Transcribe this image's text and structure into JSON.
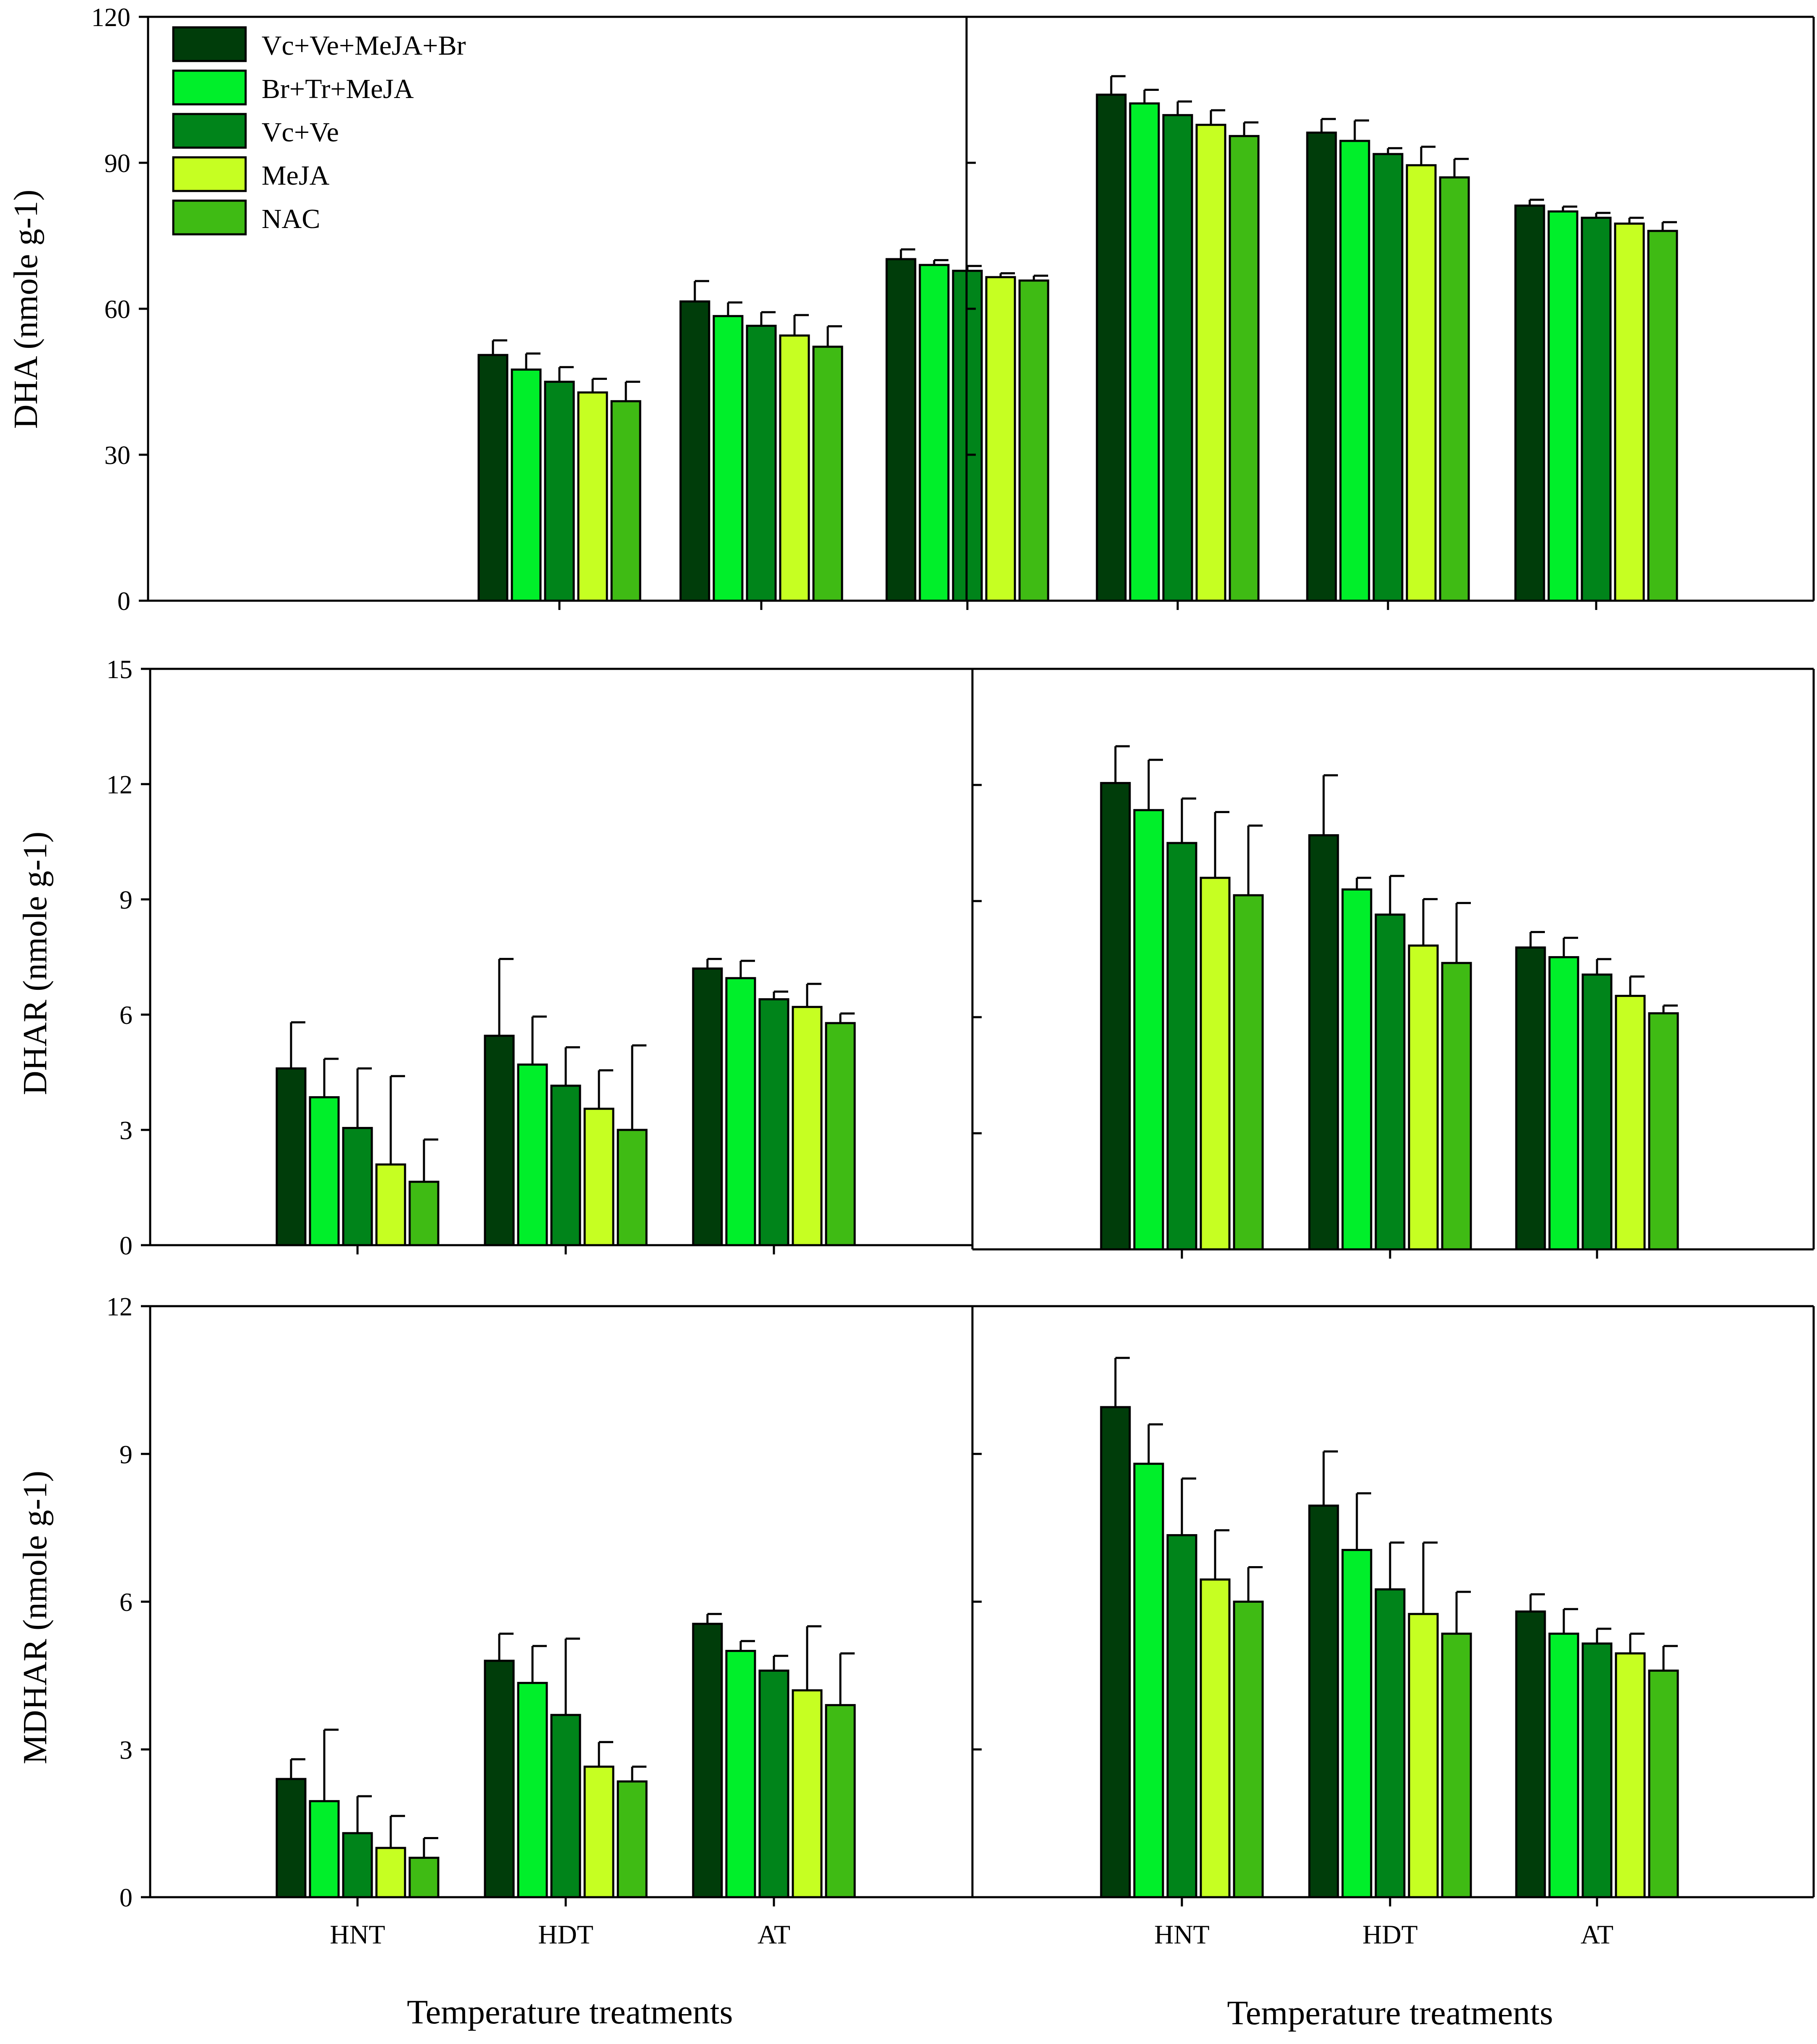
{
  "legend": {
    "entries": [
      "Vc+Ve+MeJA+Br",
      "Br+Tr+MeJA",
      "Vc+Ve",
      "MeJA",
      "NAC"
    ]
  },
  "colors": [
    "#003d0a",
    "#00ef2a",
    "#00841a",
    "#c6ff22",
    "#3fbb14"
  ],
  "chart_data": [
    {
      "type": "bar",
      "id": "dha-left",
      "ylabel": "DHA (nmole g-1)",
      "xlabel": "",
      "categories": [
        "HNT",
        "HDT",
        "AT"
      ],
      "show_category_labels": false,
      "ylim": [
        0,
        120
      ],
      "yticks": [
        0,
        30,
        60,
        90,
        120
      ],
      "show_ytick_labels": true,
      "series": [
        {
          "name": "Vc+Ve+MeJA+Br",
          "values": [
            50.5,
            61.5,
            70.2
          ],
          "errors": [
            3.0,
            4.2,
            2.0
          ]
        },
        {
          "name": "Br+Tr+MeJA",
          "values": [
            47.5,
            58.5,
            69.0
          ],
          "errors": [
            3.3,
            2.8,
            1.0
          ]
        },
        {
          "name": "Vc+Ve",
          "values": [
            45.0,
            56.5,
            67.8
          ],
          "errors": [
            3.0,
            2.8,
            1.0
          ]
        },
        {
          "name": "MeJA",
          "values": [
            42.8,
            54.5,
            66.5
          ],
          "errors": [
            2.8,
            4.2,
            0.8
          ]
        },
        {
          "name": "NAC",
          "values": [
            41.0,
            52.2,
            65.8
          ],
          "errors": [
            4.0,
            4.2,
            1.0
          ]
        }
      ]
    },
    {
      "type": "bar",
      "id": "dha-right",
      "ylabel": "",
      "xlabel": "",
      "categories": [
        "HNT",
        "HDT",
        "AT"
      ],
      "show_category_labels": false,
      "ylim": [
        0,
        120
      ],
      "yticks": [
        0,
        30,
        60,
        90,
        120
      ],
      "show_ytick_labels": false,
      "series": [
        {
          "name": "Vc+Ve+MeJA+Br",
          "values": [
            104.0,
            96.2,
            81.2
          ],
          "errors": [
            3.8,
            2.8,
            1.2
          ]
        },
        {
          "name": "Br+Tr+MeJA",
          "values": [
            102.2,
            94.5,
            80.0
          ],
          "errors": [
            2.8,
            4.2,
            1.0
          ]
        },
        {
          "name": "Vc+Ve",
          "values": [
            99.8,
            91.8,
            78.7
          ],
          "errors": [
            2.8,
            1.2,
            1.0
          ]
        },
        {
          "name": "MeJA",
          "values": [
            97.8,
            89.5,
            77.5
          ],
          "errors": [
            3.0,
            3.8,
            1.2
          ]
        },
        {
          "name": "NAC",
          "values": [
            95.5,
            87.0,
            76.0
          ],
          "errors": [
            2.8,
            3.8,
            1.8
          ]
        }
      ]
    },
    {
      "type": "bar",
      "id": "dhar-left",
      "ylabel": "DHAR (nmole g-1)",
      "xlabel": "",
      "categories": [
        "HNT",
        "HDT",
        "AT"
      ],
      "show_category_labels": false,
      "ylim": [
        0,
        15
      ],
      "yticks": [
        0,
        3,
        6,
        9,
        12,
        15
      ],
      "show_ytick_labels": true,
      "series": [
        {
          "name": "Vc+Ve+MeJA+Br",
          "values": [
            4.6,
            5.45,
            7.2
          ],
          "errors": [
            1.2,
            2.0,
            0.25
          ]
        },
        {
          "name": "Br+Tr+MeJA",
          "values": [
            3.85,
            4.7,
            6.95
          ],
          "errors": [
            1.0,
            1.25,
            0.45
          ]
        },
        {
          "name": "Vc+Ve",
          "values": [
            3.05,
            4.15,
            6.4
          ],
          "errors": [
            1.55,
            1.0,
            0.2
          ]
        },
        {
          "name": "MeJA",
          "values": [
            2.1,
            3.55,
            6.2
          ],
          "errors": [
            2.3,
            1.0,
            0.6
          ]
        },
        {
          "name": "NAC",
          "values": [
            1.65,
            3.0,
            5.78
          ],
          "errors": [
            1.1,
            2.2,
            0.25
          ]
        }
      ]
    },
    {
      "type": "bar",
      "id": "dhar-right",
      "ylabel": "",
      "xlabel": "",
      "categories": [
        "HNT",
        "HDT",
        "AT"
      ],
      "show_category_labels": false,
      "ylim": [
        0,
        15
      ],
      "yticks": [
        0,
        3,
        6,
        9,
        12,
        15
      ],
      "show_ytick_labels": false,
      "series": [
        {
          "name": "Vc+Ve+MeJA+Br",
          "values": [
            12.05,
            10.7,
            7.8
          ],
          "errors": [
            0.95,
            1.55,
            0.4
          ]
        },
        {
          "name": "Br+Tr+MeJA",
          "values": [
            11.35,
            9.3,
            7.55
          ],
          "errors": [
            1.3,
            0.3,
            0.5
          ]
        },
        {
          "name": "Vc+Ve",
          "values": [
            10.5,
            8.65,
            7.1
          ],
          "errors": [
            1.15,
            1.0,
            0.4
          ]
        },
        {
          "name": "MeJA",
          "values": [
            9.6,
            7.85,
            6.55
          ],
          "errors": [
            1.7,
            1.2,
            0.5
          ]
        },
        {
          "name": "NAC",
          "values": [
            9.15,
            7.4,
            6.1
          ],
          "errors": [
            1.8,
            1.55,
            0.2
          ]
        }
      ]
    },
    {
      "type": "bar",
      "id": "mdhar-left",
      "ylabel": "MDHAR (nmole g-1)",
      "xlabel": "Temperature treatments",
      "categories": [
        "HNT",
        "HDT",
        "AT"
      ],
      "show_category_labels": true,
      "ylim": [
        0,
        12
      ],
      "yticks": [
        0,
        3,
        6,
        9,
        12
      ],
      "show_ytick_labels": true,
      "series": [
        {
          "name": "Vc+Ve+MeJA+Br",
          "values": [
            2.4,
            4.8,
            5.55
          ],
          "errors": [
            0.4,
            0.55,
            0.2
          ]
        },
        {
          "name": "Br+Tr+MeJA",
          "values": [
            1.95,
            4.35,
            5.0
          ],
          "errors": [
            1.45,
            0.75,
            0.2
          ]
        },
        {
          "name": "Vc+Ve",
          "values": [
            1.3,
            3.7,
            4.6
          ],
          "errors": [
            0.75,
            1.55,
            0.3
          ]
        },
        {
          "name": "MeJA",
          "values": [
            1.0,
            2.65,
            4.2
          ],
          "errors": [
            0.65,
            0.5,
            1.3
          ]
        },
        {
          "name": "NAC",
          "values": [
            0.8,
            2.35,
            3.9
          ],
          "errors": [
            0.4,
            0.3,
            1.05
          ]
        }
      ]
    },
    {
      "type": "bar",
      "id": "mdhar-right",
      "ylabel": "",
      "xlabel": "Temperature treatments",
      "categories": [
        "HNT",
        "HDT",
        "AT"
      ],
      "show_category_labels": true,
      "ylim": [
        0,
        12
      ],
      "yticks": [
        0,
        3,
        6,
        9,
        12
      ],
      "show_ytick_labels": false,
      "series": [
        {
          "name": "Vc+Ve+MeJA+Br",
          "values": [
            9.95,
            7.95,
            5.8
          ],
          "errors": [
            1.0,
            1.1,
            0.35
          ]
        },
        {
          "name": "Br+Tr+MeJA",
          "values": [
            8.8,
            7.05,
            5.35
          ],
          "errors": [
            0.8,
            1.15,
            0.5
          ]
        },
        {
          "name": "Vc+Ve",
          "values": [
            7.35,
            6.25,
            5.15
          ],
          "errors": [
            1.15,
            0.95,
            0.3
          ]
        },
        {
          "name": "MeJA",
          "values": [
            6.45,
            5.75,
            4.95
          ],
          "errors": [
            1.0,
            1.45,
            0.4
          ]
        },
        {
          "name": "NAC",
          "values": [
            6.0,
            5.35,
            4.6
          ],
          "errors": [
            0.7,
            0.85,
            0.5
          ]
        }
      ]
    }
  ]
}
